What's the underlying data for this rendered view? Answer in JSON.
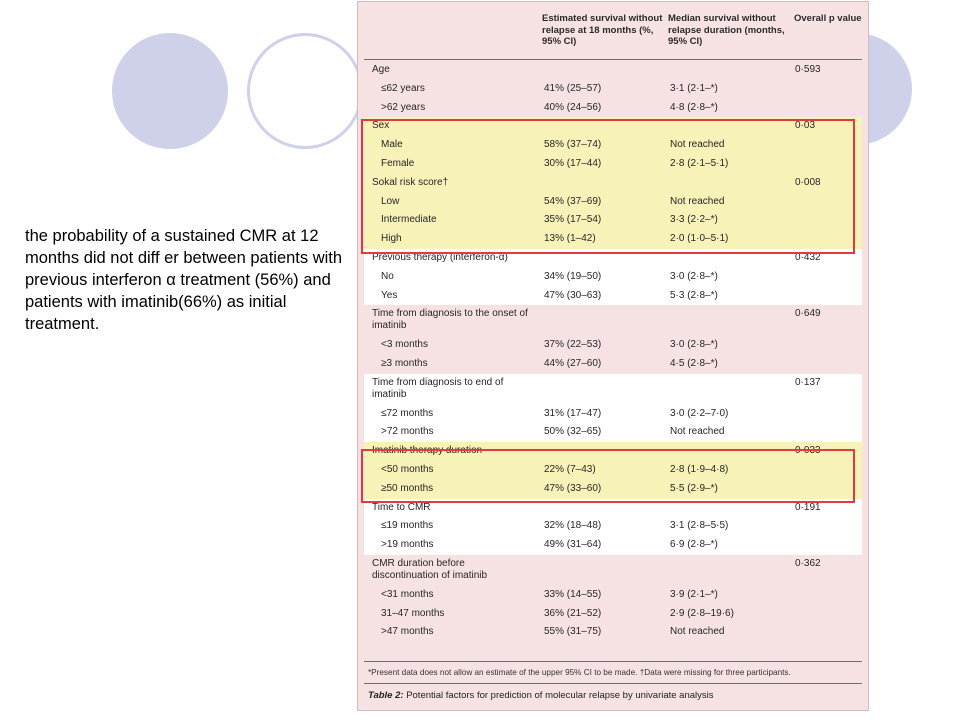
{
  "slide": {
    "caption": "the probability of a sustained CMR at 12 months did not diff er between patients with previous interferon α treatment (56%) and patients with imatinib(66%) as initial treatment."
  },
  "table": {
    "headers": {
      "survival": "Estimated survival without relapse at 18 months (%, 95% CI)",
      "median": "Median survival without relapse duration (months, 95% CI)",
      "pvalue": "Overall p value"
    },
    "groups": [
      {
        "label": "Age",
        "p": "0·593",
        "rows": [
          {
            "label": "≤62 years",
            "survival": "41% (25–57)",
            "median": "3·1 (2·1–*)"
          },
          {
            "label": ">62 years",
            "survival": "40% (24–56)",
            "median": "4·8 (2·8–*)"
          }
        ]
      },
      {
        "label": "Sex",
        "p": "0·03",
        "rows": [
          {
            "label": "Male",
            "survival": "58% (37–74)",
            "median": "Not reached"
          },
          {
            "label": "Female",
            "survival": "30% (17–44)",
            "median": "2·8 (2·1–5·1)"
          }
        ]
      },
      {
        "label": "Sokal risk score†",
        "p": "0·008",
        "rows": [
          {
            "label": "Low",
            "survival": "54% (37–69)",
            "median": "Not reached"
          },
          {
            "label": "Intermediate",
            "survival": "35% (17–54)",
            "median": "3·3 (2·2–*)"
          },
          {
            "label": "High",
            "survival": "13% (1–42)",
            "median": "2·0 (1·0–5·1)"
          }
        ]
      },
      {
        "label": "Previous therapy (interferon-α)",
        "p": "0·432",
        "rows": [
          {
            "label": "No",
            "survival": "34% (19–50)",
            "median": "3·0 (2·8–*)"
          },
          {
            "label": "Yes",
            "survival": "47% (30–63)",
            "median": "5·3 (2·8–*)"
          }
        ]
      },
      {
        "label": "Time from diagnosis to the onset of imatinib",
        "p": "0·649",
        "rows": [
          {
            "label": "<3 months",
            "survival": "37% (22–53)",
            "median": "3·0 (2·8–*)"
          },
          {
            "label": "≥3 months",
            "survival": "44% (27–60)",
            "median": "4·5 (2·8–*)"
          }
        ]
      },
      {
        "label": "Time from diagnosis to end of imatinib",
        "p": "0·137",
        "rows": [
          {
            "label": "≤72 months",
            "survival": "31% (17–47)",
            "median": "3·0 (2·2–7·0)"
          },
          {
            "label": ">72 months",
            "survival": "50% (32–65)",
            "median": "Not reached"
          }
        ]
      },
      {
        "label": "Imatinib therapy duration",
        "p": "0·033",
        "rows": [
          {
            "label": "<50 months",
            "survival": "22% (7–43)",
            "median": "2·8 (1·9–4·8)"
          },
          {
            "label": "≥50 months",
            "survival": "47% (33–60)",
            "median": "5·5 (2·9–*)"
          }
        ]
      },
      {
        "label": "Time to CMR",
        "p": "0·191",
        "rows": [
          {
            "label": "≤19 months",
            "survival": "32% (18–48)",
            "median": "3·1 (2·8–5·5)"
          },
          {
            "label": ">19 months",
            "survival": "49% (31–64)",
            "median": "6·9 (2·8–*)"
          }
        ]
      },
      {
        "label": "CMR duration before discontinuation of imatinib",
        "p": "0·362",
        "rows": [
          {
            "label": "<31 months",
            "survival": "33% (14–55)",
            "median": "3·9 (2·1–*)"
          },
          {
            "label": "31–47 months",
            "survival": "36% (21–52)",
            "median": "2·9 (2·8–19·6)"
          },
          {
            "label": ">47 months",
            "survival": "55% (31–75)",
            "median": "Not reached"
          }
        ]
      }
    ],
    "footnote": "*Present data does not allow an estimate of the upper 95% CI to be made. †Data were missing for three participants.",
    "title_label": "Table 2:",
    "title_text": "Potential factors for prediction of molecular relapse by univariate analysis"
  },
  "colors": {
    "decor_circle": "#cfd0ea",
    "table_bg": "#f7e2e3",
    "highlight": "#f7f2b7",
    "red_box": "#e03c3c"
  }
}
